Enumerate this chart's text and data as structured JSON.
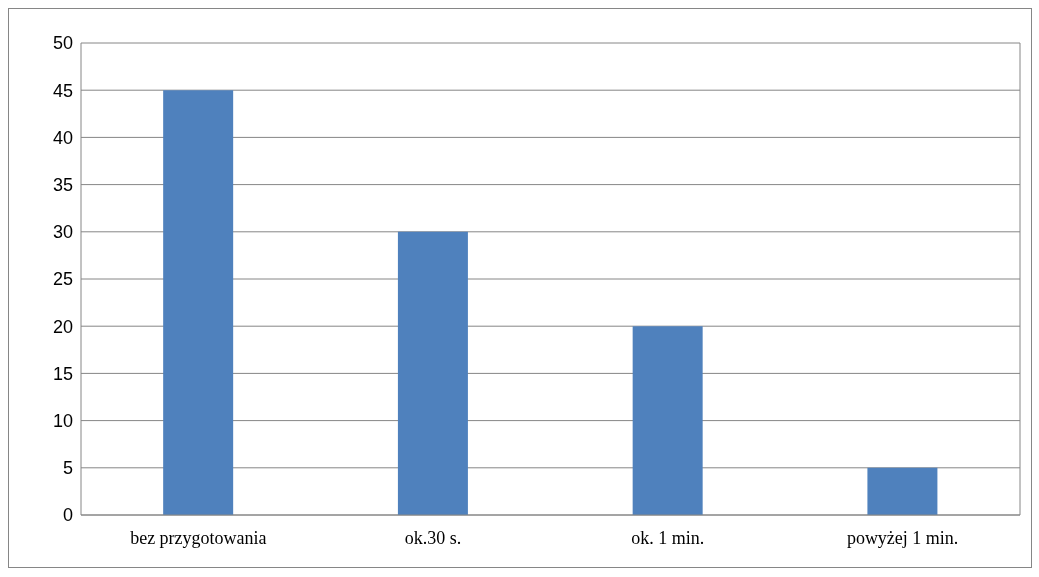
{
  "chart_data": {
    "type": "bar",
    "categories": [
      "bez przygotowania",
      "ok.30 s.",
      "ok. 1 min.",
      "powyżej 1 min."
    ],
    "values": [
      45,
      30,
      20,
      5
    ],
    "color": "#4f81bd",
    "ylim": [
      0,
      50
    ],
    "yticks": [
      0,
      5,
      10,
      15,
      20,
      25,
      30,
      35,
      40,
      45,
      50
    ],
    "grid": "y",
    "legend": false
  }
}
